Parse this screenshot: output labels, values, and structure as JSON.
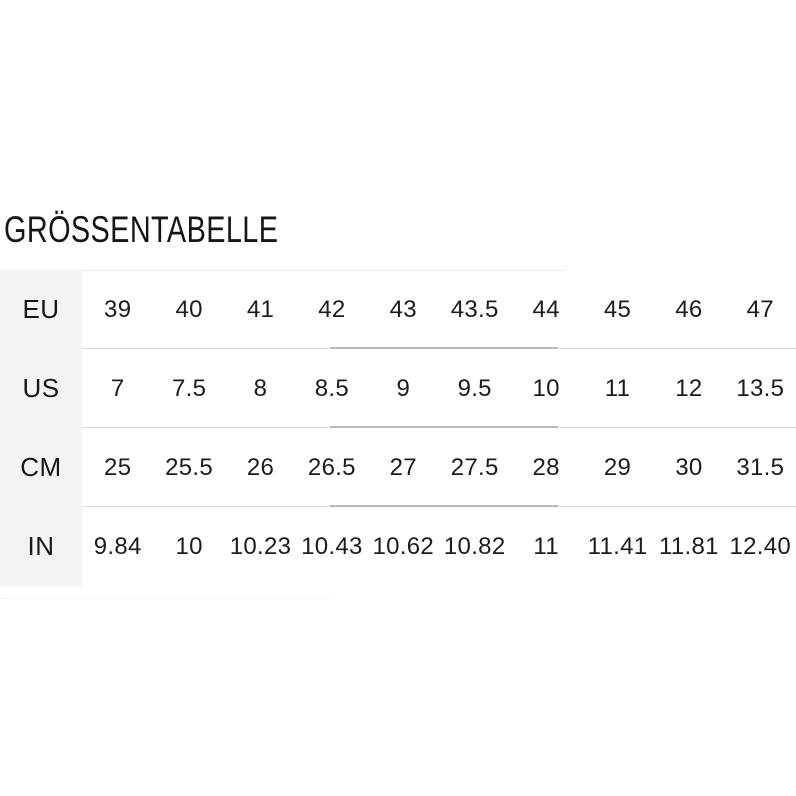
{
  "title": "GRÖSSENTABELLE",
  "chart_data": {
    "type": "table",
    "title": "GRÖSSENTABELLE",
    "row_headers": [
      "EU",
      "US",
      "CM",
      "IN"
    ],
    "rows": [
      {
        "label": "EU",
        "values": [
          "39",
          "40",
          "41",
          "42",
          "43",
          "43.5",
          "44",
          "45",
          "46",
          "47"
        ]
      },
      {
        "label": "US",
        "values": [
          "7",
          "7.5",
          "8",
          "8.5",
          "9",
          "9.5",
          "10",
          "11",
          "12",
          "13.5"
        ]
      },
      {
        "label": "CM",
        "values": [
          "25",
          "25.5",
          "26",
          "26.5",
          "27",
          "27.5",
          "28",
          "29",
          "30",
          "31.5"
        ]
      },
      {
        "label": "IN",
        "values": [
          "9.84",
          "10",
          "10.23",
          "10.43",
          "10.62",
          "10.82",
          "11",
          "11.41",
          "11.81",
          "12.40"
        ]
      }
    ],
    "layout": {
      "columns": 10,
      "label_column_first": true
    }
  },
  "colors": {
    "background": "#ffffff",
    "label_column_bg": "#f3f3f3",
    "text": "#1c1c1c",
    "divider_light": "#dedede",
    "divider_dark": "#b9b9b9"
  }
}
